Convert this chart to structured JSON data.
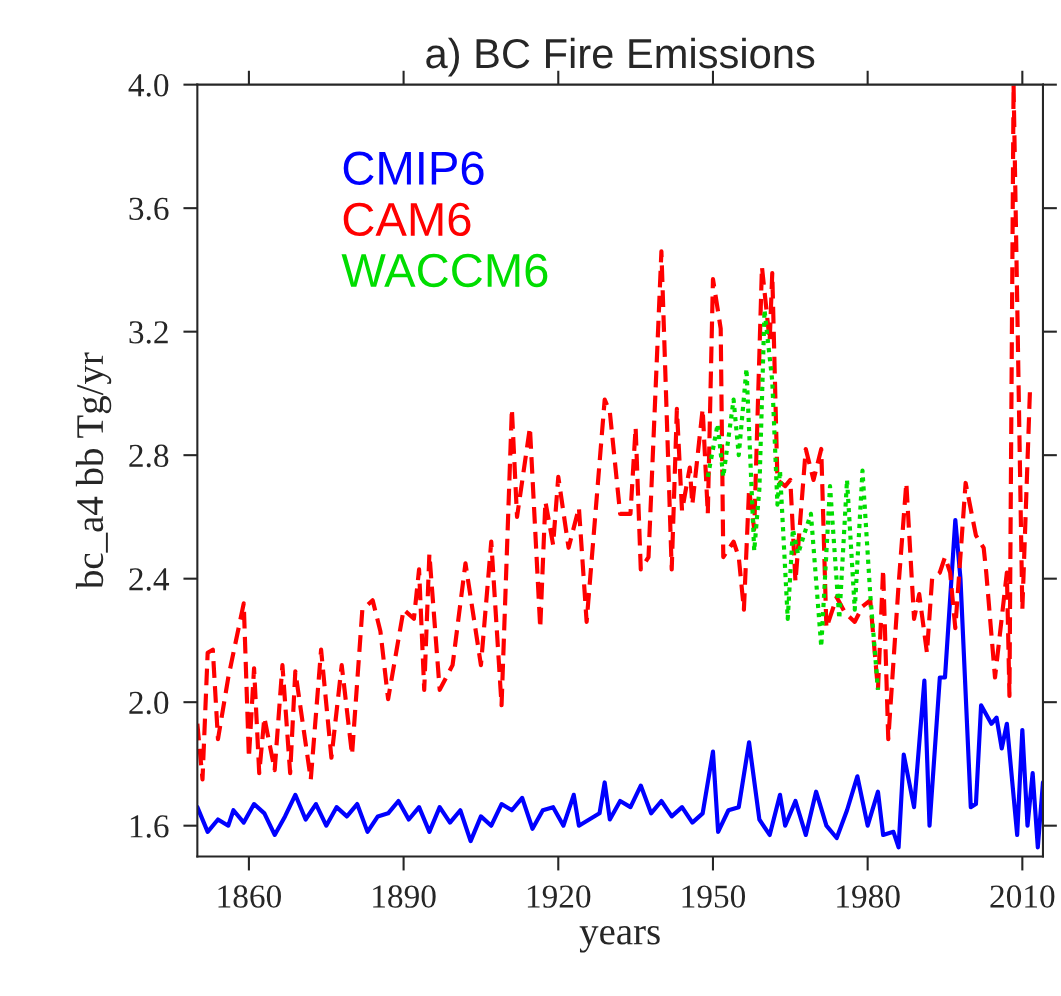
{
  "chart_data": {
    "type": "line",
    "title": "a) BC Fire Emissions",
    "xlabel": "years",
    "ylabel": "bc_a4 bb Tg/yr",
    "xlim": [
      1850,
      2014
    ],
    "xticks": [
      1860,
      1890,
      1920,
      1950,
      1980,
      2010
    ],
    "ylim": [
      1.5,
      4.0
    ],
    "yticks": [
      {
        "value": 1.6,
        "label": "1.6"
      },
      {
        "value": 2.0,
        "label": "2.0"
      },
      {
        "value": 2.4,
        "label": "2.4"
      },
      {
        "value": 2.8,
        "label": "2.8"
      },
      {
        "value": 3.2,
        "label": "3.2"
      },
      {
        "value": 3.6,
        "label": "3.6"
      },
      {
        "value": 4.0,
        "label": "4.0"
      }
    ],
    "grid": false,
    "legend": "top left",
    "series": [
      {
        "name": "CMIP6",
        "color": "#0000ff",
        "line_style": "solid",
        "x": [
          1850,
          1852,
          1854,
          1856,
          1857,
          1859,
          1861,
          1863,
          1865,
          1867,
          1869,
          1871,
          1873,
          1875,
          1877,
          1879,
          1881,
          1883,
          1885,
          1887,
          1889,
          1891,
          1893,
          1895,
          1897,
          1899,
          1901,
          1903,
          1905,
          1907,
          1909,
          1911,
          1913,
          1915,
          1917,
          1919,
          1921,
          1923,
          1924,
          1926,
          1928,
          1929,
          1930,
          1932,
          1934,
          1936,
          1938,
          1940,
          1942,
          1944,
          1946,
          1948,
          1950,
          1951,
          1953,
          1955,
          1957,
          1959,
          1961,
          1963,
          1964,
          1966,
          1968,
          1970,
          1972,
          1974,
          1976,
          1978,
          1980,
          1982,
          1983,
          1985,
          1986,
          1987,
          1989,
          1991,
          1992,
          1994,
          1995,
          1997,
          1998,
          2000,
          2001,
          2002,
          2004,
          2005,
          2006,
          2007,
          2009,
          2010,
          2011,
          2012,
          2013,
          2014
        ],
        "values": [
          1.66,
          1.58,
          1.62,
          1.6,
          1.65,
          1.61,
          1.67,
          1.64,
          1.57,
          1.63,
          1.7,
          1.62,
          1.67,
          1.6,
          1.66,
          1.63,
          1.67,
          1.58,
          1.63,
          1.64,
          1.68,
          1.62,
          1.66,
          1.58,
          1.66,
          1.61,
          1.65,
          1.55,
          1.63,
          1.6,
          1.67,
          1.65,
          1.69,
          1.59,
          1.65,
          1.66,
          1.6,
          1.7,
          1.6,
          1.62,
          1.64,
          1.74,
          1.62,
          1.68,
          1.66,
          1.73,
          1.64,
          1.68,
          1.63,
          1.66,
          1.61,
          1.64,
          1.84,
          1.58,
          1.65,
          1.66,
          1.87,
          1.62,
          1.57,
          1.7,
          1.6,
          1.68,
          1.57,
          1.71,
          1.6,
          1.56,
          1.65,
          1.76,
          1.6,
          1.71,
          1.57,
          1.58,
          1.53,
          1.83,
          1.66,
          2.07,
          1.6,
          2.08,
          2.08,
          2.59,
          2.4,
          1.66,
          1.67,
          1.99,
          1.93,
          1.95,
          1.85,
          1.93,
          1.57,
          1.91,
          1.6,
          1.77,
          1.53,
          1.74
        ]
      },
      {
        "name": "CAM6",
        "color": "#ff0000",
        "line_style": "dashed",
        "x": [
          1850,
          1851,
          1852,
          1853,
          1854,
          1856,
          1859,
          1860,
          1861,
          1862,
          1863,
          1865,
          1866.5,
          1868,
          1869,
          1872,
          1874,
          1876,
          1878,
          1880,
          1882,
          1884,
          1885.5,
          1887,
          1890,
          1892,
          1893,
          1894,
          1895,
          1897,
          1899.5,
          1902,
          1905,
          1907,
          1909,
          1911,
          1912,
          1914.5,
          1916.5,
          1917.5,
          1919,
          1920,
          1922,
          1924,
          1925.5,
          1929,
          1930,
          1932,
          1934,
          1935,
          1936,
          1937.5,
          1940,
          1942,
          1943,
          1944,
          1945.5,
          1946,
          1948,
          1949,
          1950,
          1951.5,
          1952,
          1954,
          1955,
          1956,
          1957,
          1958,
          1959.5,
          1961,
          1961.5,
          1962.5,
          1964,
          1965,
          1966,
          1968,
          1969.5,
          1971,
          1972,
          1974,
          1975.6,
          1977.5,
          1979,
          1980.5,
          1982,
          1983,
          1984,
          1986,
          1987.5,
          1989,
          1990,
          1991.5,
          1992.5,
          1994,
          1995,
          1996,
          1997,
          1999,
          2001,
          2002.5,
          2003,
          2004.7,
          2007,
          2007.5,
          2008.3,
          2010,
          2011.5
        ],
        "values": [
          1.93,
          1.75,
          2.16,
          2.17,
          1.88,
          2.08,
          2.32,
          1.82,
          2.11,
          1.77,
          1.95,
          1.78,
          2.12,
          1.77,
          2.1,
          1.75,
          2.17,
          1.82,
          2.12,
          1.83,
          2.3,
          2.33,
          2.23,
          2.01,
          2.3,
          2.27,
          2.43,
          2.04,
          2.48,
          2.04,
          2.12,
          2.45,
          2.12,
          2.52,
          1.99,
          2.95,
          2.6,
          2.89,
          2.24,
          2.65,
          2.51,
          2.73,
          2.5,
          2.63,
          2.26,
          2.98,
          2.94,
          2.61,
          2.61,
          2.89,
          2.43,
          2.47,
          3.46,
          2.43,
          2.95,
          2.62,
          2.76,
          2.64,
          2.95,
          2.61,
          3.37,
          3.21,
          2.47,
          2.52,
          2.47,
          2.3,
          2.69,
          2.56,
          3.41,
          3.17,
          3.39,
          2.72,
          2.7,
          2.72,
          2.39,
          2.82,
          2.72,
          2.82,
          2.24,
          2.34,
          2.29,
          2.26,
          2.31,
          2.33,
          2.04,
          2.43,
          1.88,
          2.38,
          2.71,
          2.27,
          2.35,
          2.16,
          2.4,
          2.42,
          2.47,
          2.42,
          2.24,
          2.71,
          2.54,
          2.5,
          2.42,
          2.08,
          2.42,
          2.02,
          4.0,
          2.3,
          3.02
        ]
      },
      {
        "name": "WACCM6",
        "color": "#00dd00",
        "line_style": "dotted",
        "x": [
          1949,
          1950.9,
          1952,
          1954,
          1955,
          1956.5,
          1958,
          1959,
          1960,
          1961.5,
          1962.5,
          1963,
          1964.5,
          1965.5,
          1966.5,
          1968,
          1969,
          1971,
          1972.7,
          1974.5,
          1976,
          1977.5,
          1979,
          1980.5,
          1982
        ],
        "values": [
          2.73,
          2.9,
          2.73,
          2.98,
          2.8,
          3.08,
          2.49,
          2.69,
          3.27,
          3.04,
          2.64,
          2.75,
          2.27,
          2.56,
          2.48,
          2.56,
          2.61,
          2.18,
          2.7,
          2.27,
          2.72,
          2.3,
          2.75,
          2.35,
          2.04
        ]
      }
    ]
  }
}
